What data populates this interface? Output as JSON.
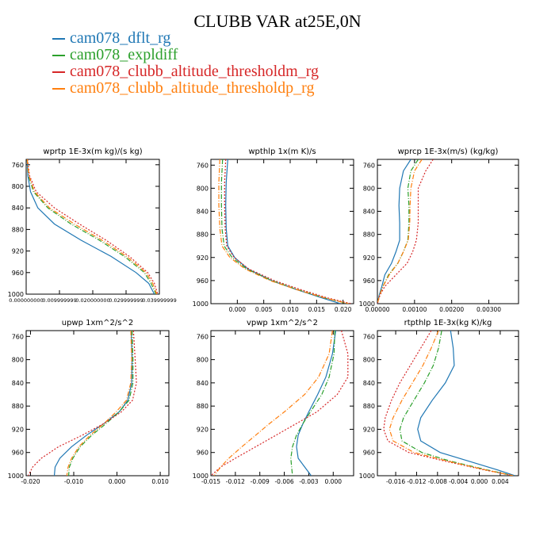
{
  "title": "CLUBB VAR at25E,0N",
  "legend": [
    {
      "name": "cam078_dflt_rg",
      "color": "#1f77b4",
      "dash": "solid"
    },
    {
      "name": "cam078_expldiff",
      "color": "#2ca02c",
      "dash": "dashdot"
    },
    {
      "name": "cam078_clubb_altitude_thresholdm_rg",
      "color": "#d62728",
      "dash": "dot"
    },
    {
      "name": "cam078_clubb_altitude_thresholdp_rg",
      "color": "#ff7f0e",
      "dash": "dashdot"
    }
  ],
  "chart_data": [
    {
      "type": "line",
      "title": "wprtp  1E-3x(m kg)/(s kg)",
      "xlim": [
        0,
        0.04
      ],
      "ylim": [
        1000,
        750
      ],
      "xticks": [
        0,
        0.01,
        0.02,
        0.03,
        0.04
      ],
      "xtick_labels": [
        "0.000000000",
        "0.009999999",
        "0.020000000",
        "0.029999999",
        "0.039999999"
      ],
      "yticks": [
        760,
        800,
        840,
        880,
        920,
        960,
        1000
      ],
      "y": [
        750,
        780,
        810,
        840,
        870,
        900,
        930,
        960,
        980,
        1000
      ],
      "series": [
        {
          "name": "cam078_dflt_rg",
          "values": [
            0.0003,
            0.0005,
            0.0013,
            0.0035,
            0.0085,
            0.0165,
            0.0255,
            0.033,
            0.0368,
            0.0385
          ]
        },
        {
          "name": "cam078_expldiff",
          "values": [
            0.0003,
            0.0007,
            0.0022,
            0.0065,
            0.0135,
            0.022,
            0.0295,
            0.0355,
            0.0375,
            0.039
          ]
        },
        {
          "name": "cam078_clubb_altitude_thresholdm_rg",
          "values": [
            0.0004,
            0.001,
            0.003,
            0.0085,
            0.016,
            0.024,
            0.031,
            0.0365,
            0.0385,
            0.0395
          ]
        },
        {
          "name": "cam078_clubb_altitude_thresholdp_rg",
          "values": [
            0.0003,
            0.0008,
            0.0025,
            0.007,
            0.0145,
            0.0228,
            0.0302,
            0.036,
            0.038,
            0.0392
          ]
        }
      ]
    },
    {
      "type": "line",
      "title": "wpthlp  1x(m K)/s",
      "xlim": [
        -0.005,
        0.022
      ],
      "ylim": [
        1000,
        750
      ],
      "xticks": [
        0,
        0.005,
        0.01,
        0.015,
        0.02
      ],
      "xtick_labels": [
        "0.000",
        "0.005",
        "0.010",
        "0.015",
        "0.020"
      ],
      "yticks": [
        760,
        800,
        840,
        880,
        920,
        960,
        1000
      ],
      "y": [
        750,
        790,
        830,
        870,
        900,
        920,
        940,
        960,
        975,
        990,
        1000
      ],
      "series": [
        {
          "name": "cam078_dflt_rg",
          "values": [
            -0.0018,
            -0.0021,
            -0.0022,
            -0.0021,
            -0.0018,
            -0.0005,
            0.002,
            0.0065,
            0.011,
            0.016,
            0.0195
          ]
        },
        {
          "name": "cam078_expldiff",
          "values": [
            -0.0028,
            -0.003,
            -0.003,
            -0.0029,
            -0.0025,
            -0.001,
            0.0018,
            0.0065,
            0.0112,
            0.0165,
            0.021
          ]
        },
        {
          "name": "cam078_clubb_altitude_thresholdm_rg",
          "values": [
            -0.0022,
            -0.0024,
            -0.0024,
            -0.0023,
            -0.002,
            -0.0006,
            0.0022,
            0.007,
            0.0118,
            0.017,
            0.0215
          ]
        },
        {
          "name": "cam078_clubb_altitude_thresholdp_rg",
          "values": [
            -0.0033,
            -0.0035,
            -0.0035,
            -0.0033,
            -0.0029,
            -0.0014,
            0.0015,
            0.0062,
            0.011,
            0.0165,
            0.021
          ]
        }
      ]
    },
    {
      "type": "line",
      "title": "wprcp  1E-3x(m/s) (kg/kg)",
      "xlim": [
        0,
        0.0038
      ],
      "ylim": [
        1000,
        750
      ],
      "xticks": [
        0,
        0.001,
        0.002,
        0.003
      ],
      "xtick_labels": [
        "0.00000",
        "0.00100",
        "0.00200",
        "0.00300"
      ],
      "yticks": [
        760,
        800,
        840,
        880,
        920,
        960,
        1000
      ],
      "y": [
        750,
        770,
        800,
        830,
        860,
        890,
        910,
        930,
        950,
        970,
        985,
        1000
      ],
      "series": [
        {
          "name": "cam078_dflt_rg",
          "values": [
            0.0009,
            0.0007,
            0.0006,
            0.00058,
            0.0006,
            0.0006,
            0.0005,
            0.00038,
            0.0002,
            0.00012,
            5e-05,
            0
          ]
        },
        {
          "name": "cam078_expldiff",
          "values": [
            0.0011,
            0.0009,
            0.00082,
            0.00085,
            0.00085,
            0.00082,
            0.0007,
            0.00055,
            0.0003,
            0.00015,
            6e-05,
            0
          ]
        },
        {
          "name": "cam078_clubb_altitude_thresholdm_rg",
          "values": [
            0.0015,
            0.0013,
            0.0011,
            0.0011,
            0.0011,
            0.00105,
            0.00095,
            0.0008,
            0.0005,
            0.0002,
            7e-05,
            0
          ]
        },
        {
          "name": "cam078_clubb_altitude_thresholdp_rg",
          "values": [
            0.0012,
            0.001,
            0.0009,
            0.00088,
            0.00087,
            0.00083,
            0.0007,
            0.00055,
            0.00032,
            0.00015,
            6e-05,
            0
          ]
        }
      ]
    },
    {
      "type": "line",
      "title": "upwp  1xm^2/s^2",
      "xlim": [
        -0.021,
        0.012
      ],
      "ylim": [
        1000,
        750
      ],
      "xticks": [
        -0.02,
        -0.01,
        0,
        0.01
      ],
      "xtick_labels": [
        "-0.020",
        "-0.010",
        "0.000",
        "0.010"
      ],
      "yticks": [
        760,
        800,
        840,
        880,
        920,
        960,
        1000
      ],
      "y": [
        750,
        800,
        840,
        870,
        890,
        910,
        930,
        950,
        970,
        985,
        1000
      ],
      "series": [
        {
          "name": "cam078_dflt_rg",
          "values": [
            0.0033,
            0.0035,
            0.0034,
            0.0025,
            0.0005,
            -0.003,
            -0.007,
            -0.0105,
            -0.0132,
            -0.0143,
            -0.0145
          ]
        },
        {
          "name": "cam078_expldiff",
          "values": [
            0.0035,
            0.0037,
            0.0037,
            0.0028,
            0.0005,
            -0.0025,
            -0.0058,
            -0.0085,
            -0.0102,
            -0.011,
            -0.0112
          ]
        },
        {
          "name": "cam078_clubb_altitude_thresholdm_rg",
          "values": [
            0.0038,
            0.0042,
            0.0045,
            0.0036,
            0.001,
            -0.003,
            -0.008,
            -0.0135,
            -0.0175,
            -0.0195,
            -0.0205
          ]
        },
        {
          "name": "cam078_clubb_altitude_thresholdp_rg",
          "values": [
            0.0032,
            0.0034,
            0.0032,
            0.0022,
            -0.0002,
            -0.003,
            -0.0062,
            -0.0088,
            -0.0105,
            -0.0113,
            -0.0116
          ]
        }
      ]
    },
    {
      "type": "line",
      "title": "vpwp  1xm^2/s^2",
      "xlim": [
        -0.015,
        0.0025
      ],
      "ylim": [
        1000,
        750
      ],
      "xticks": [
        -0.015,
        -0.012,
        -0.009,
        -0.006,
        -0.003,
        0
      ],
      "xtick_labels": [
        "-0.015",
        "-0.012",
        "-0.009",
        "-0.006",
        "-0.003",
        "0.000"
      ],
      "yticks": [
        760,
        800,
        840,
        880,
        920,
        960,
        1000
      ],
      "y": [
        750,
        790,
        830,
        860,
        890,
        910,
        930,
        950,
        970,
        985,
        1000
      ],
      "series": [
        {
          "name": "cam078_dflt_rg",
          "values": [
            0.0003,
            -0.0001,
            -0.0009,
            -0.0019,
            -0.003,
            -0.0037,
            -0.0043,
            -0.0045,
            -0.0043,
            -0.0035,
            -0.0027
          ]
        },
        {
          "name": "cam078_expldiff",
          "values": [
            0.0002,
            0.0001,
            -0.0005,
            -0.0014,
            -0.0028,
            -0.0037,
            -0.0045,
            -0.005,
            -0.0052,
            -0.0051,
            -0.005
          ]
        },
        {
          "name": "cam078_clubb_altitude_thresholdm_rg",
          "values": [
            0.001,
            0.0018,
            0.0018,
            0.0005,
            -0.002,
            -0.0045,
            -0.007,
            -0.0095,
            -0.012,
            -0.0138,
            -0.015
          ]
        },
        {
          "name": "cam078_clubb_altitude_thresholdp_rg",
          "values": [
            -0.0001,
            -0.0005,
            -0.0018,
            -0.0035,
            -0.006,
            -0.0078,
            -0.0095,
            -0.0112,
            -0.0128,
            -0.0138,
            -0.0146
          ]
        }
      ]
    },
    {
      "type": "line",
      "title": "rtpthlp  1E-3x(kg K)/kg",
      "xlim": [
        -0.0195,
        0.0075
      ],
      "ylim": [
        1000,
        750
      ],
      "xticks": [
        -0.016,
        -0.012,
        -0.008,
        -0.004,
        0,
        0.004
      ],
      "xtick_labels": [
        "-0.016",
        "-0.012",
        "-0.008",
        "-0.004",
        "0.000",
        "0.004"
      ],
      "yticks": [
        760,
        800,
        840,
        880,
        920,
        960,
        1000
      ],
      "y": [
        750,
        780,
        810,
        840,
        870,
        900,
        920,
        940,
        960,
        975,
        990,
        1000
      ],
      "series": [
        {
          "name": "cam078_dflt_rg",
          "values": [
            -0.0055,
            -0.005,
            -0.0048,
            -0.0065,
            -0.009,
            -0.0112,
            -0.0118,
            -0.0112,
            -0.0075,
            -0.002,
            0.0035,
            0.0068
          ]
        },
        {
          "name": "cam078_expldiff",
          "values": [
            -0.0072,
            -0.0078,
            -0.0088,
            -0.0105,
            -0.0125,
            -0.0145,
            -0.0152,
            -0.0148,
            -0.011,
            -0.0055,
            0.0015,
            0.0065
          ]
        },
        {
          "name": "cam078_clubb_altitude_thresholdm_rg",
          "values": [
            -0.0092,
            -0.0112,
            -0.0132,
            -0.0152,
            -0.0168,
            -0.018,
            -0.0183,
            -0.0175,
            -0.0135,
            -0.0065,
            0.001,
            0.0065
          ]
        },
        {
          "name": "cam078_clubb_altitude_thresholdp_rg",
          "values": [
            -0.0078,
            -0.0092,
            -0.0108,
            -0.0128,
            -0.0148,
            -0.0165,
            -0.0172,
            -0.0165,
            -0.0125,
            -0.006,
            0.0012,
            0.0065
          ]
        }
      ]
    }
  ]
}
